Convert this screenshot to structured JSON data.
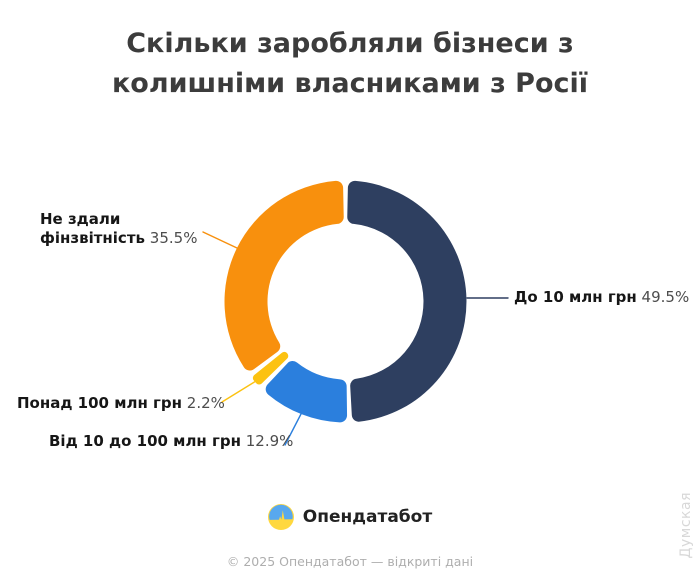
{
  "title": {
    "line1": "Скільки заробляли бізнеси з",
    "line2": "колишніми власниками з Росії"
  },
  "chart_data": {
    "type": "pie",
    "subtype": "donut",
    "title": "Скільки заробляли бізнеси з колишніми власниками з Росії",
    "unit": "%",
    "start_angle_deg": 0,
    "direction": "clockwise",
    "segments": [
      {
        "label": "До 10 млн грн",
        "value": 49.5,
        "color": "#2e3f60"
      },
      {
        "label": "Від 10 до 100 млн грн",
        "value": 12.9,
        "color": "#2b7fdd"
      },
      {
        "label": "Понад 100 млн грн",
        "value": 2.2,
        "color": "#fcc211"
      },
      {
        "label": "Не здали фінзвітність",
        "value": 35.5,
        "color": "#f8900d"
      }
    ]
  },
  "labels": {
    "under10": {
      "name": "До 10 млн грн",
      "pct": "49.5%"
    },
    "mid": {
      "name": "Від 10 до 100 млн грн",
      "pct": "12.9%"
    },
    "over100": {
      "name": "Понад 100 млн грн",
      "pct": "2.2%"
    },
    "noreport": {
      "line1": "Не здали",
      "line2": "фінзвітність",
      "pct": "35.5%"
    }
  },
  "branding": {
    "logo_text": "Опендатабот",
    "footer": "© 2025 Опендатабот — відкриті дані",
    "watermark": "Думская"
  }
}
